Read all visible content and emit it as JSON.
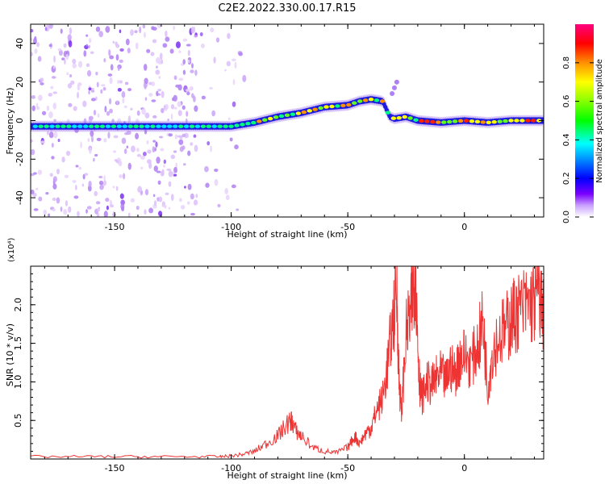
{
  "title": "C2E2.2022.330.00.17.R15",
  "chart_data": [
    {
      "type": "heatmap",
      "xlabel": "Height of straight line (km)",
      "ylabel": "Frequency (Hz)",
      "xlim": [
        -186,
        34
      ],
      "ylim": [
        -50,
        50
      ],
      "xticks": [
        -150,
        -100,
        -50,
        0
      ],
      "yticks": [
        -40,
        -20,
        0,
        20,
        40
      ],
      "colorbar": {
        "label": "Normalized spectral amplitude",
        "range": [
          0,
          1
        ],
        "ticks": [
          "0.0",
          "0.2",
          "0.4",
          "0.6",
          "0.8"
        ]
      },
      "ridge": {
        "description_points_x": [
          -186,
          -160,
          -140,
          -115,
          -100,
          -90,
          -80,
          -70,
          -60,
          -50,
          -45,
          -40,
          -35,
          -32,
          -30,
          -25,
          -20,
          -10,
          0,
          10,
          20,
          34
        ],
        "description_points_y": [
          -3,
          -3,
          -3,
          -3,
          -3,
          -1,
          2,
          4,
          7,
          8,
          10,
          11,
          10,
          2,
          1,
          2,
          0,
          -1,
          0,
          -1,
          0,
          0
        ]
      }
    },
    {
      "type": "line",
      "xlabel": "Height of straight line (km)",
      "ylabel": "SNR (10 * v/v)",
      "scale_label": "(x10⁴)",
      "xlim": [
        -186,
        34
      ],
      "ylim": [
        0,
        2.5
      ],
      "xticks": [
        -150,
        -100,
        -50,
        0
      ],
      "yticks": [
        "0.5",
        "1.0",
        "1.5",
        "2.0"
      ],
      "color": "#ee3333",
      "series": [
        {
          "x": [
            -186,
            -160,
            -140,
            -120,
            -105,
            -100,
            -95,
            -90,
            -85,
            -80,
            -76,
            -74,
            -72,
            -70,
            -65,
            -60,
            -55,
            -50,
            -47,
            -45,
            -42,
            -40,
            -38,
            -35,
            -33,
            -31,
            -29,
            -28,
            -27,
            -25,
            -23,
            -22,
            -21,
            -20,
            -19,
            -18,
            -16,
            -14,
            -12,
            -10,
            -8,
            -6,
            -4,
            -2,
            0,
            3,
            6,
            8,
            10,
            12,
            15,
            18,
            20,
            22,
            25,
            28,
            30,
            32,
            34
          ],
          "values": [
            0.03,
            0.03,
            0.03,
            0.03,
            0.03,
            0.04,
            0.06,
            0.1,
            0.2,
            0.3,
            0.45,
            0.5,
            0.35,
            0.3,
            0.15,
            0.1,
            0.08,
            0.15,
            0.3,
            0.2,
            0.35,
            0.4,
            0.6,
            0.8,
            1.2,
            1.7,
            2.2,
            1.0,
            0.6,
            1.6,
            1.9,
            2.2,
            2.5,
            1.5,
            0.9,
            0.8,
            1.0,
            0.95,
            1.05,
            1.1,
            1.0,
            1.2,
            1.1,
            1.3,
            1.35,
            1.25,
            1.5,
            1.8,
            0.9,
            1.4,
            1.6,
            1.7,
            1.8,
            1.9,
            1.95,
            2.0,
            2.05,
            2.2,
            1.8
          ]
        }
      ]
    }
  ]
}
